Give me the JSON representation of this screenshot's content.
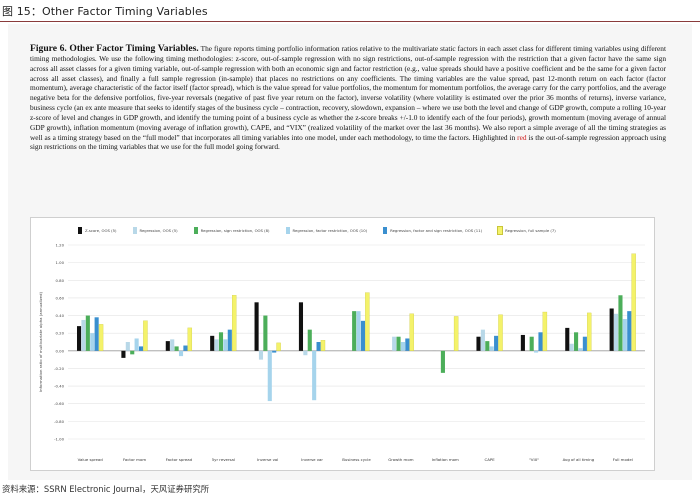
{
  "figure_label": "图 15：Other Factor Timing Variables",
  "caption": {
    "title": "Figure 6. Other Factor Timing Variables.",
    "body": "  The figure reports timing portfolio information ratios relative to the multivariate static factors in each asset class for different timing variables using different timing methodologies. We use the following timing methodologies: z-score, out-of-sample regression with no sign restrictions, out-of-sample regression with the restriction that a given factor have the same sign across all asset classes for a given timing variable, out-of-sample regression with both an economic sign and factor restriction (e.g., value spreads should have a positive coefficient and be the same for a given factor across all asset classes), and finally a full sample regression (in-sample) that places no restrictions on any coefficients. The timing variables are the value spread, past 12-month return on each factor (factor momentum), average characteristic of the factor itself (factor spread), which is the value spread for value portfolios, the momentum for momentum portfolios, the average carry for the carry portfolios, and the average negative beta for the defensive portfolios, five-year reversals (negative of past five year return on the factor), inverse volatility (where volatility is estimated over the prior 36 months of returns), inverse variance, business cycle (an ex ante measure that seeks to identify stages of the business cycle – contraction, recovery, slowdown, expansion – where we use both the level and change of GDP growth, compute a rolling 10-year z-score of level and changes in GDP growth, and identify the turning point of a business cycle as whether the z-score breaks +/-1.0 to identify each of the four periods), growth momentum (moving average of annual GDP growth), inflation momentum (moving average of inflation growth), CAPE, and “VIX” (realized volatility of the market over the last 36 months). We also report a simple average of all the timing strategies as well as a timing strategy based on the “full model” that incorporates all timing variables into one model, under each methodology, to time the factors. Highlighted in ",
    "red_word": "red",
    "tail": " is the out-of-sample regression approach using sign restrictions on the timing variables that we use for the full model going forward."
  },
  "source": "资料来源：SSRN Electronic Journal，天风证券研究所",
  "chart_data": {
    "type": "bar",
    "title": "",
    "xlabel": "",
    "ylabel": "Information ratio of multivariate alpha (annualized)",
    "ylim": [
      -1.0,
      1.2
    ],
    "y_ticks": [
      "1.20",
      "1.00",
      "0.80",
      "0.60",
      "0.40",
      "0.20",
      "0.00",
      "-0.20",
      "-0.40",
      "-0.60",
      "-0.80",
      "-1.00"
    ],
    "grid": true,
    "legend_position": "top",
    "categories": [
      "Value spread",
      "Factor mom",
      "Factor spread",
      "5yr reversal",
      "Inverse vol",
      "Inverse var",
      "Business cycle",
      "Growth mom",
      "Inflation mom",
      "CAPE",
      "\"VIX\"",
      "Avg of all timing",
      "Full model"
    ],
    "series": [
      {
        "name": "Z-score, OOS (5)",
        "color": "#111111",
        "values": [
          0.28,
          -0.08,
          0.11,
          0.17,
          0.55,
          0.55,
          0.0,
          0.0,
          0.0,
          0.16,
          0.18,
          0.26,
          0.48
        ]
      },
      {
        "name": "Regression, OOS (5)",
        "color": "#b8d8e8",
        "values": [
          0.35,
          0.1,
          0.13,
          0.13,
          -0.1,
          -0.05,
          0.0,
          0.16,
          0.0,
          0.24,
          0.0,
          0.08,
          0.42
        ]
      },
      {
        "name": "Regression, sign restriction, OOS (8)",
        "color": "#4cae5a",
        "values": [
          0.4,
          -0.04,
          0.05,
          0.21,
          0.4,
          0.24,
          0.45,
          0.16,
          -0.25,
          0.11,
          0.16,
          0.21,
          0.63
        ]
      },
      {
        "name": "Regression, factor restriction, OOS (10)",
        "color": "#a6d4ec",
        "values": [
          0.2,
          0.14,
          -0.06,
          0.13,
          -0.57,
          -0.56,
          0.45,
          0.1,
          0.0,
          0.05,
          -0.02,
          0.03,
          0.36
        ]
      },
      {
        "name": "Regression, factor and sign restriction, OOS (11)",
        "color": "#3a8fcf",
        "values": [
          0.38,
          0.05,
          0.06,
          0.24,
          -0.02,
          0.1,
          0.34,
          0.14,
          0.0,
          0.17,
          0.21,
          0.16,
          0.45
        ]
      },
      {
        "name": "Regression, full sample (7)",
        "color": "#f4f26a",
        "values": [
          0.3,
          0.34,
          0.26,
          0.63,
          0.09,
          0.12,
          0.66,
          0.42,
          0.39,
          0.41,
          0.44,
          0.43,
          1.1
        ]
      }
    ]
  }
}
